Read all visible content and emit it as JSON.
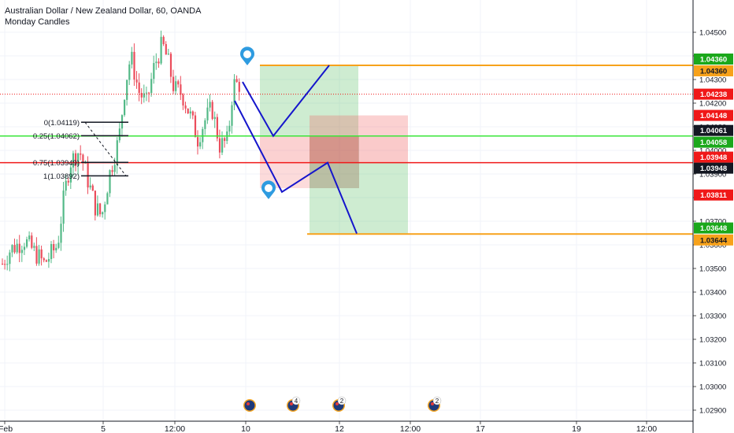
{
  "header": {
    "title": "Australian Dollar / New Zealand Dollar, 60, OANDA",
    "subtitle": "Monday Candles"
  },
  "colors": {
    "bull": "#53b987",
    "bear": "#eb4d5c",
    "orange": "#f7a21b",
    "green_line": "#39e639",
    "red_line": "#f01818",
    "blue_path": "#1515cc",
    "dark_badge": "#131722",
    "current_red": "#f01818",
    "marker_blue": "#2e9be0"
  },
  "chart_data": {
    "type": "candlestick",
    "y_axis": {
      "min": 1.0289,
      "max": 1.0455,
      "ticks": [
        "1.04500",
        "1.04400",
        "1.04300",
        "1.04200",
        "1.04100",
        "1.04000",
        "1.03900",
        "1.03800",
        "1.03700",
        "1.03600",
        "1.03500",
        "1.03400",
        "1.03300",
        "1.03200",
        "1.03100",
        "1.03000",
        "1.02900"
      ]
    },
    "x_axis": {
      "ticks": [
        "Feb",
        "5",
        "12:00",
        "10",
        "12",
        "12:00",
        "17",
        "19",
        "12:00"
      ]
    },
    "price_badges": [
      {
        "value": "1.04360",
        "style": "green"
      },
      {
        "value": "1.04360",
        "style": "orange"
      },
      {
        "value": "1.04238",
        "style": "red"
      },
      {
        "value": "1.04148",
        "style": "red"
      },
      {
        "value": "1.04061",
        "style": "dark"
      },
      {
        "value": "1.04058",
        "style": "green"
      },
      {
        "value": "1.03948",
        "style": "red"
      },
      {
        "value": "1.03948",
        "style": "dark"
      },
      {
        "value": "1.03811",
        "style": "red"
      },
      {
        "value": "1.03648",
        "style": "green"
      },
      {
        "value": "1.03644",
        "style": "orange"
      }
    ],
    "fib_levels": [
      {
        "label": "0(1.04119)",
        "price": 1.04119
      },
      {
        "label": "0.25(1.04062)",
        "price": 1.04062
      },
      {
        "label": "0.75(1.03949)",
        "price": 1.03949
      },
      {
        "label": "1(1.03892)",
        "price": 1.03892
      }
    ],
    "levels": [
      {
        "name": "upper-orange",
        "price": 1.0436
      },
      {
        "name": "green",
        "price": 1.04061
      },
      {
        "name": "red",
        "price": 1.03948
      },
      {
        "name": "lower-orange",
        "price": 1.03646
      }
    ],
    "current_price": 1.04238,
    "event_markers": [
      {
        "label": ""
      },
      {
        "label": "4"
      },
      {
        "label": "2"
      },
      {
        "label": "2"
      }
    ]
  }
}
